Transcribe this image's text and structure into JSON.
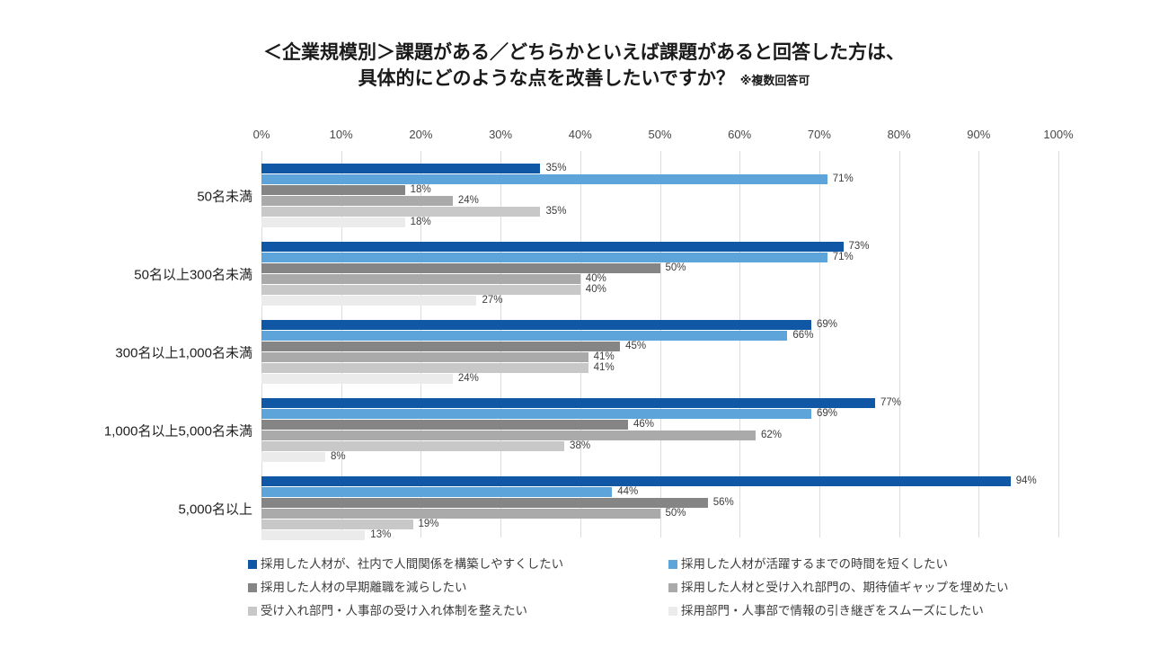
{
  "title": {
    "line1": "＜企業規模別＞課題がある／どちらかといえば課題があると回答した方は、",
    "line2": "具体的にどのような点を改善したいですか？",
    "note": "※複数回答可"
  },
  "chart_data": {
    "type": "bar",
    "orientation": "horizontal",
    "title": "＜企業規模別＞課題がある／どちらかといえば課題があると回答した方は、具体的にどのような点を改善したいですか？ ※複数回答可",
    "categories": [
      "50名未満",
      "50名以上300名未満",
      "300名以上1,000名未満",
      "1,000名以上5,000名未満",
      "5,000名以上"
    ],
    "series": [
      {
        "name": "採用した人材が、社内で人間関係を構築しやすくしたい",
        "color": "#1057A5",
        "values": [
          35,
          73,
          69,
          77,
          94
        ]
      },
      {
        "name": "採用した人材が活躍するまでの時間を短くしたい",
        "color": "#5CA4D9",
        "values": [
          71,
          71,
          66,
          69,
          44
        ]
      },
      {
        "name": "採用した人材の早期離職を減らしたい",
        "color": "#858585",
        "values": [
          18,
          50,
          45,
          46,
          56
        ]
      },
      {
        "name": "採用した人材と受け入れ部門の、期待値ギャップを埋めたい",
        "color": "#AAAAAA",
        "values": [
          24,
          40,
          41,
          62,
          50
        ]
      },
      {
        "name": "受け入れ部門・人事部の受け入れ体制を整えたい",
        "color": "#C8C8C8",
        "values": [
          35,
          40,
          41,
          38,
          19
        ]
      },
      {
        "name": "採用部門・人事部で情報の引き継ぎをスムーズにしたい",
        "color": "#EBEBEB",
        "values": [
          18,
          27,
          24,
          8,
          13
        ]
      }
    ],
    "value_suffix": "%",
    "x_ticks": [
      "0%",
      "10%",
      "20%",
      "30%",
      "40%",
      "50%",
      "60%",
      "70%",
      "80%",
      "90%",
      "100%"
    ],
    "xlim": [
      0,
      100
    ],
    "grid": true,
    "legend_position": "bottom",
    "legend_columns": 2,
    "colors": {
      "gridline": "#dcdcdc",
      "label_text": "#3c3c3c",
      "tick_text": "#484848",
      "category_text": "#1f1f1f"
    }
  }
}
